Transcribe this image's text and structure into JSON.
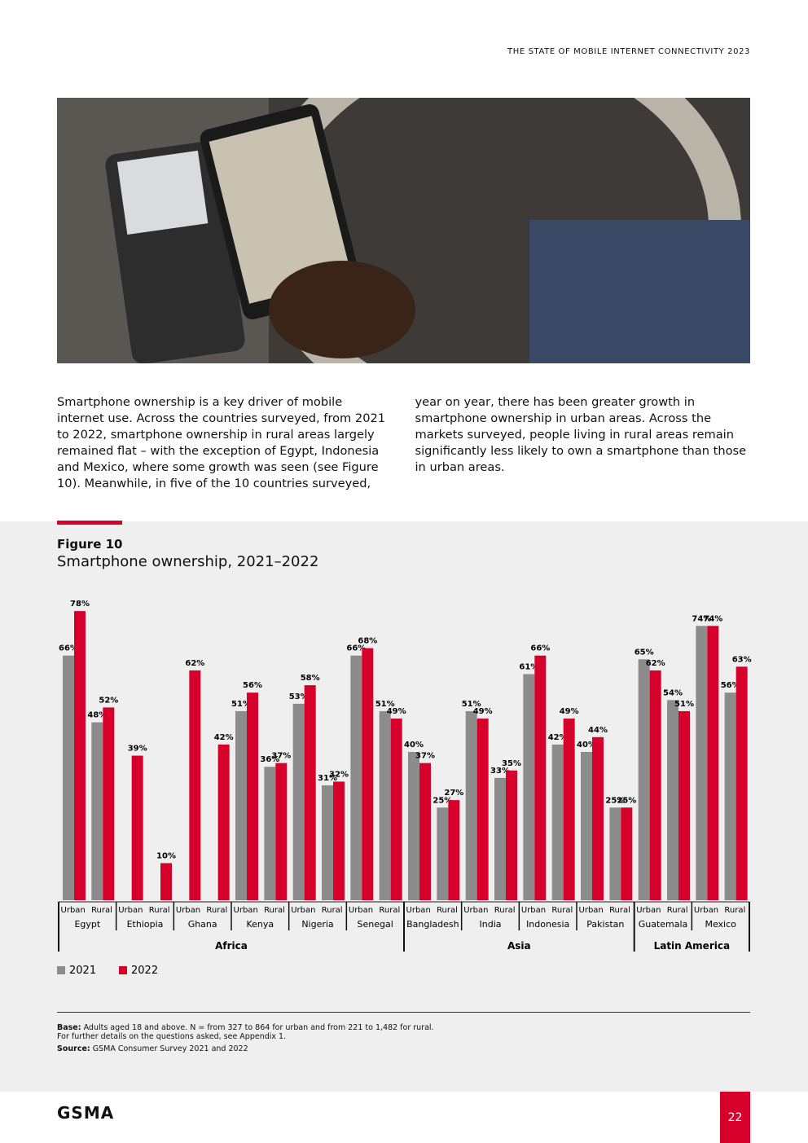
{
  "header": "THE STATE OF MOBILE INTERNET CONNECTIVITY 2023",
  "body": "Smartphone ownership is a key driver of mobile internet use. Across the countries surveyed, from 2021 to 2022, smartphone ownership in rural areas largely remained flat – with the exception of Egypt, Indonesia and Mexico, where some growth was seen (see Figure 10). Meanwhile, in five of the 10 countries surveyed, year on year, there has been greater growth in smartphone ownership in urban areas. Across the markets surveyed, people living in rural areas remain significantly less likely to own a smartphone than those in urban areas.",
  "figure": {
    "label": "Figure 10",
    "chart_data": {
      "type": "bar",
      "title": "Smartphone ownership, 2021–2022",
      "categories": [
        "Urban",
        "Rural",
        "Urban",
        "Rural",
        "Urban",
        "Rural",
        "Urban",
        "Rural",
        "Urban",
        "Rural",
        "Urban",
        "Rural",
        "Urban",
        "Rural",
        "Urban",
        "Rural",
        "Urban",
        "Rural",
        "Urban",
        "Rural",
        "Urban",
        "Rural",
        "Urban",
        "Rural"
      ],
      "groups": [
        {
          "name": "Africa",
          "countries": [
            "Egypt",
            "Ethiopia",
            "Ghana",
            "Kenya",
            "Nigeria",
            "Senegal"
          ]
        },
        {
          "name": "Asia",
          "countries": [
            "Bangladesh",
            "India",
            "Indonesia",
            "Pakistan"
          ]
        },
        {
          "name": "Latin America",
          "countries": [
            "Guatemala",
            "Mexico"
          ]
        }
      ],
      "series": [
        {
          "name": "2021",
          "color": "#8c8c8c",
          "values": [
            66,
            48,
            null,
            null,
            null,
            null,
            51,
            36,
            53,
            31,
            66,
            51,
            40,
            25,
            51,
            33,
            61,
            42,
            40,
            25,
            65,
            54,
            74,
            56
          ],
          "value_labels": [
            "66%",
            "48%",
            null,
            null,
            null,
            null,
            "51%",
            "36%",
            "53%",
            "31%",
            "66%",
            "51%",
            "40%",
            "25%",
            "51%",
            "33%",
            "61%",
            "42%",
            "40%",
            "25%",
            "65%",
            "54%",
            "74%",
            "56%"
          ]
        },
        {
          "name": "2022",
          "color": "#d6002a",
          "values": [
            78,
            52,
            39,
            10,
            62,
            42,
            56,
            37,
            58,
            32,
            68,
            49,
            37,
            27,
            49,
            35,
            66,
            49,
            44,
            25,
            62,
            51,
            74,
            63
          ],
          "value_labels": [
            "78%",
            "52%",
            "39%",
            "10%",
            "62%",
            "42%",
            "56%",
            "37%",
            "58%",
            "32%",
            "68%",
            "49%",
            "37%",
            "27%",
            "49%",
            "35%",
            "66%",
            "49%",
            "44%",
            "25%",
            "62%",
            "51%",
            "74%",
            "63%"
          ]
        }
      ]
    }
  },
  "notes": {
    "base_label": "Base:",
    "base_text": "Adults aged 18 and above. N = from 327 to 864 for urban and from 221 to 1,482 for rural.",
    "base_text2": "For further details on the questions asked, see Appendix 1.",
    "source_label": "Source:",
    "source_text": "GSMA Consumer Survey 2021 and 2022"
  },
  "footer": {
    "logo": "GSMA",
    "page": "22"
  }
}
